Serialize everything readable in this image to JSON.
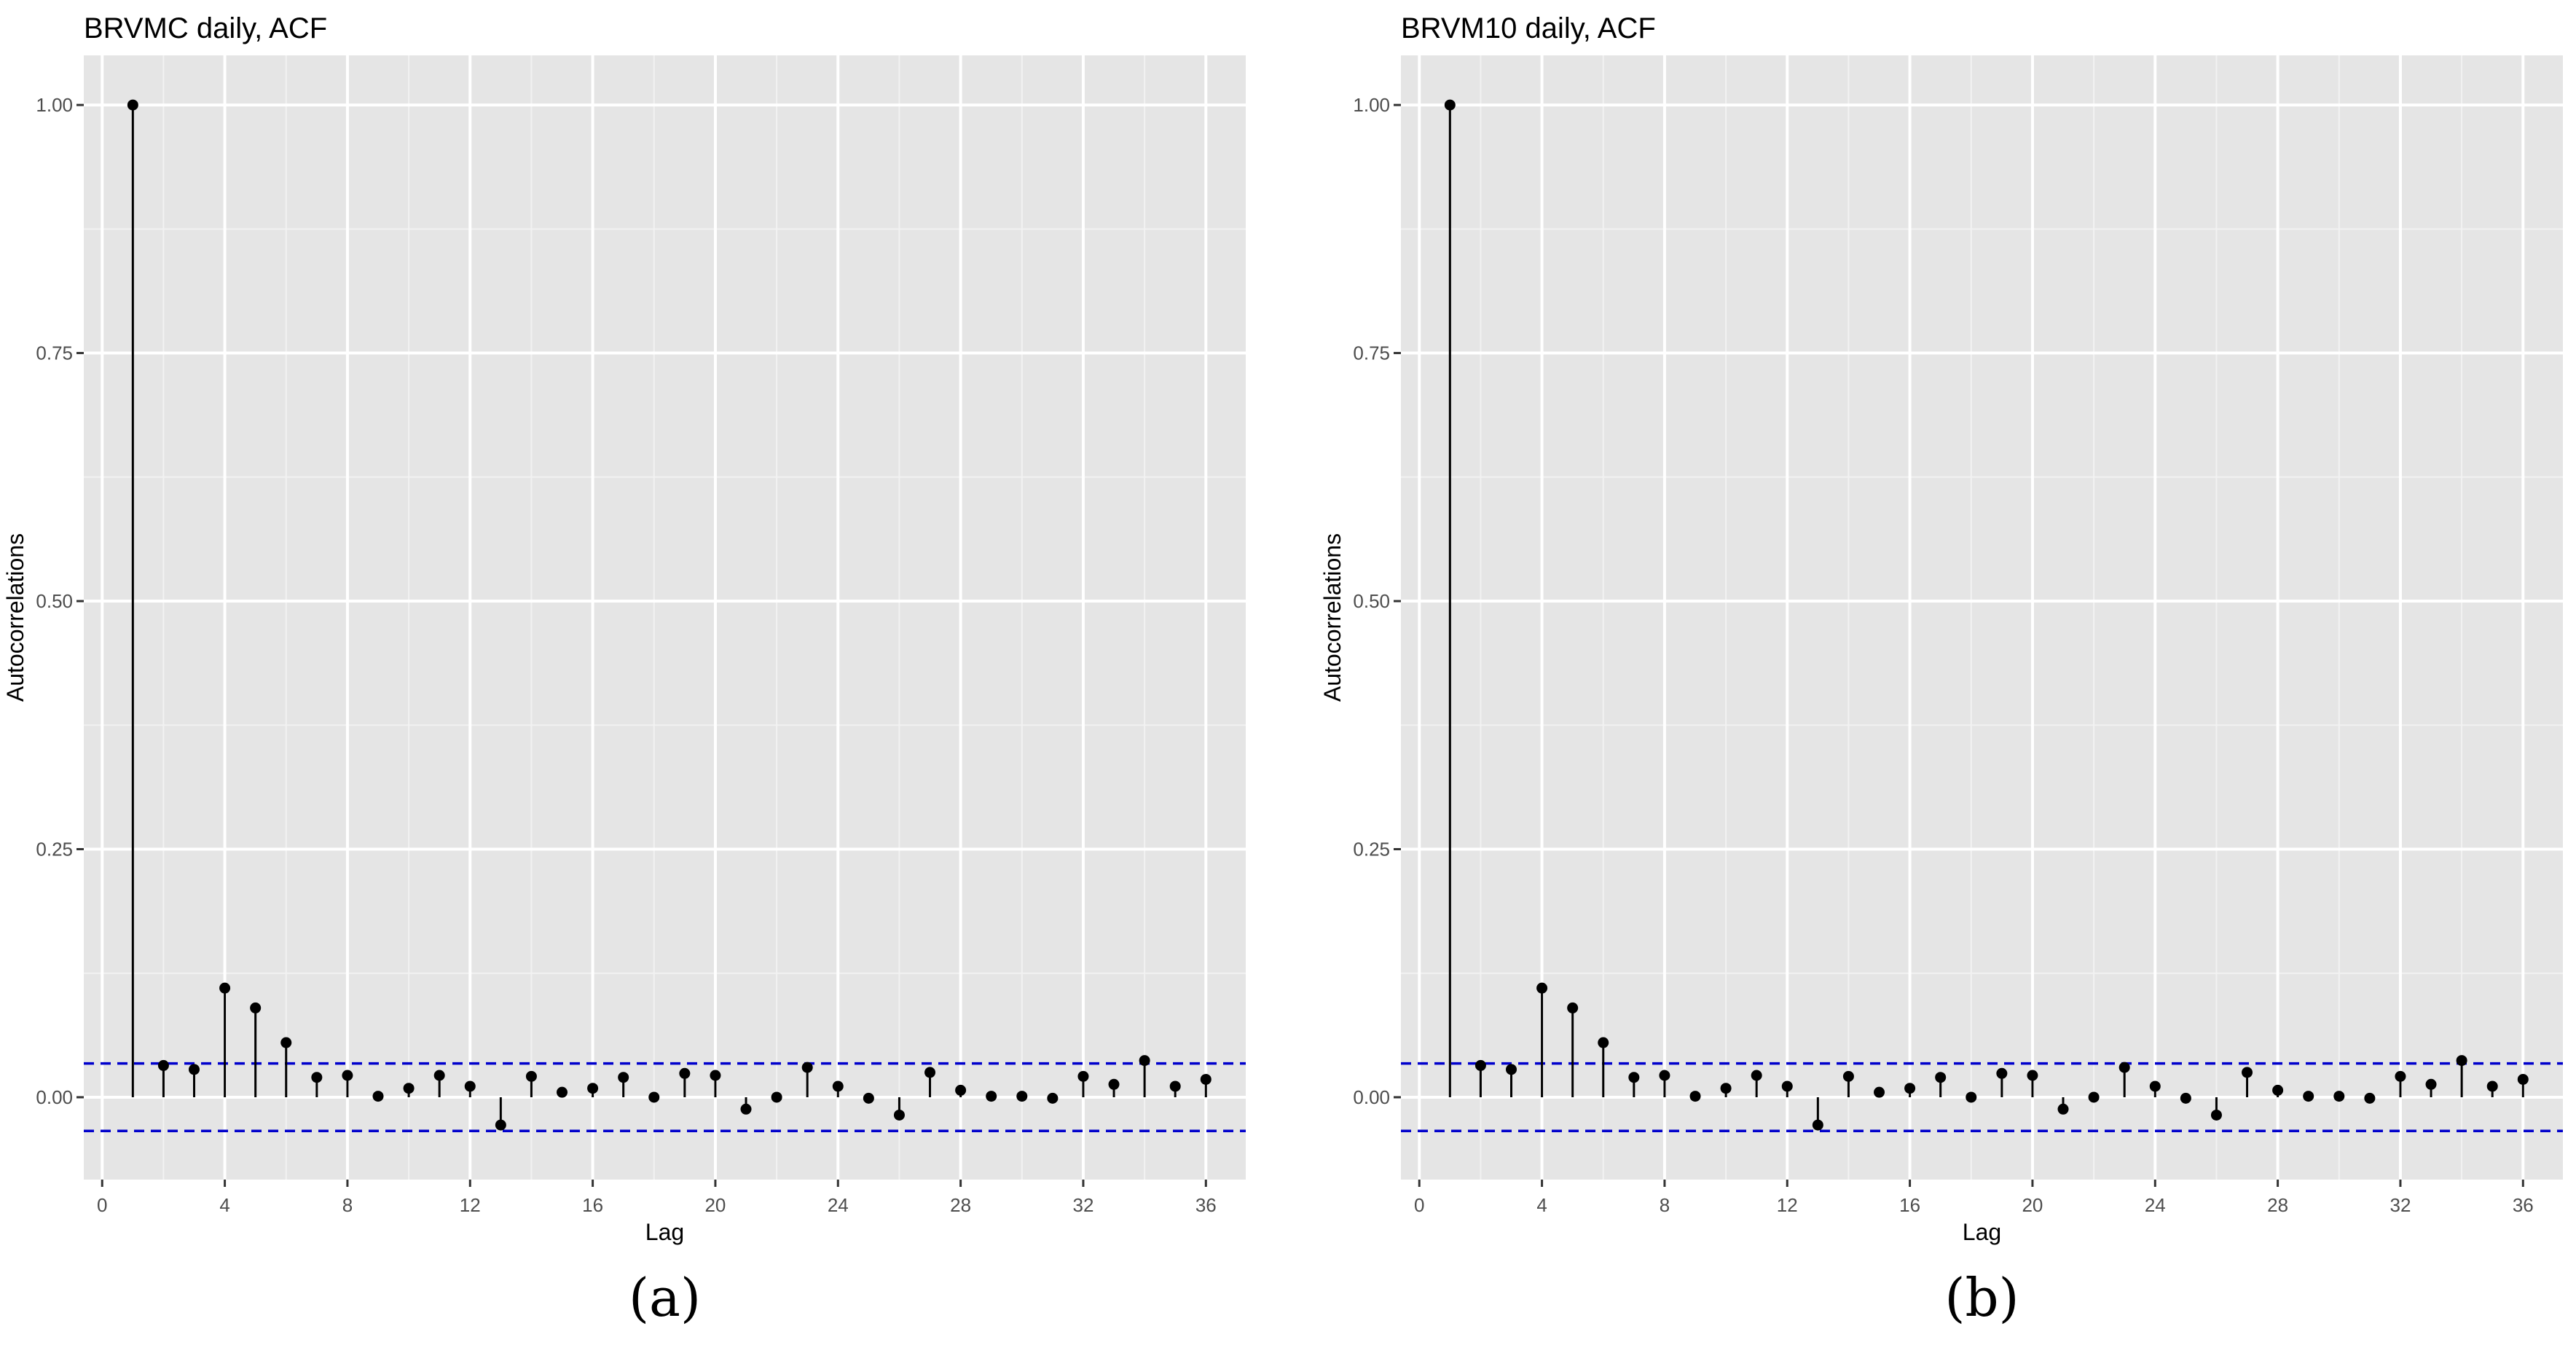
{
  "chart_data": [
    {
      "type": "stem",
      "title": "BRVMC daily, ACF",
      "xlabel": "Lag",
      "ylabel": "Autocorrelations",
      "panel_label": "(a)",
      "xlim": [
        -0.6,
        37.3
      ],
      "ylim": [
        -0.083,
        1.05
      ],
      "x_ticks": [
        0,
        4,
        8,
        12,
        16,
        20,
        24,
        28,
        32,
        36
      ],
      "y_ticks": [
        0.0,
        0.25,
        0.5,
        0.75,
        1.0
      ],
      "y_tick_labels": [
        "0.00",
        "0.25",
        "0.50",
        "0.75",
        "1.00"
      ],
      "confidence_bounds": [
        0.034,
        -0.034
      ],
      "grid": true,
      "lags": [
        1,
        2,
        3,
        4,
        5,
        6,
        7,
        8,
        9,
        10,
        11,
        12,
        13,
        14,
        15,
        16,
        17,
        18,
        19,
        20,
        21,
        22,
        23,
        24,
        25,
        26,
        27,
        28,
        29,
        30,
        31,
        32,
        33,
        34,
        35,
        36
      ],
      "values": [
        1.0,
        0.032,
        0.028,
        0.11,
        0.09,
        0.055,
        0.02,
        0.022,
        0.001,
        0.009,
        0.022,
        0.011,
        -0.028,
        0.021,
        0.005,
        0.009,
        0.02,
        0.0,
        0.024,
        0.022,
        -0.012,
        0.0,
        0.03,
        0.011,
        -0.001,
        -0.018,
        0.025,
        0.007,
        0.001,
        0.001,
        -0.001,
        0.021,
        0.013,
        0.037,
        0.011,
        0.018
      ]
    },
    {
      "type": "stem",
      "title": "BRVM10 daily, ACF",
      "xlabel": "Lag",
      "ylabel": "Autocorrelations",
      "panel_label": "(b)",
      "xlim": [
        -0.6,
        37.3
      ],
      "ylim": [
        -0.083,
        1.05
      ],
      "x_ticks": [
        0,
        4,
        8,
        12,
        16,
        20,
        24,
        28,
        32,
        36
      ],
      "y_ticks": [
        0.0,
        0.25,
        0.5,
        0.75,
        1.0
      ],
      "y_tick_labels": [
        "0.00",
        "0.25",
        "0.50",
        "0.75",
        "1.00"
      ],
      "confidence_bounds": [
        0.034,
        -0.034
      ],
      "grid": true,
      "lags": [
        1,
        2,
        3,
        4,
        5,
        6,
        7,
        8,
        9,
        10,
        11,
        12,
        13,
        14,
        15,
        16,
        17,
        18,
        19,
        20,
        21,
        22,
        23,
        24,
        25,
        26,
        27,
        28,
        29,
        30,
        31,
        32,
        33,
        34,
        35,
        36
      ],
      "values": [
        1.0,
        0.032,
        0.028,
        0.11,
        0.09,
        0.055,
        0.02,
        0.022,
        0.001,
        0.009,
        0.022,
        0.011,
        -0.028,
        0.021,
        0.005,
        0.009,
        0.02,
        0.0,
        0.024,
        0.022,
        -0.012,
        0.0,
        0.03,
        0.011,
        -0.001,
        -0.018,
        0.025,
        0.007,
        0.001,
        0.001,
        -0.001,
        0.021,
        0.013,
        0.037,
        0.011,
        0.018
      ]
    }
  ],
  "colors": {
    "panel_background": "#e5e5e5",
    "grid_major": "#ffffff",
    "grid_minor": "#f2f2f2",
    "stem": "#000000",
    "point": "#000000",
    "confidence_line": "#0000cc",
    "axis_text": "#4d4d4d",
    "title_text": "#000000"
  }
}
